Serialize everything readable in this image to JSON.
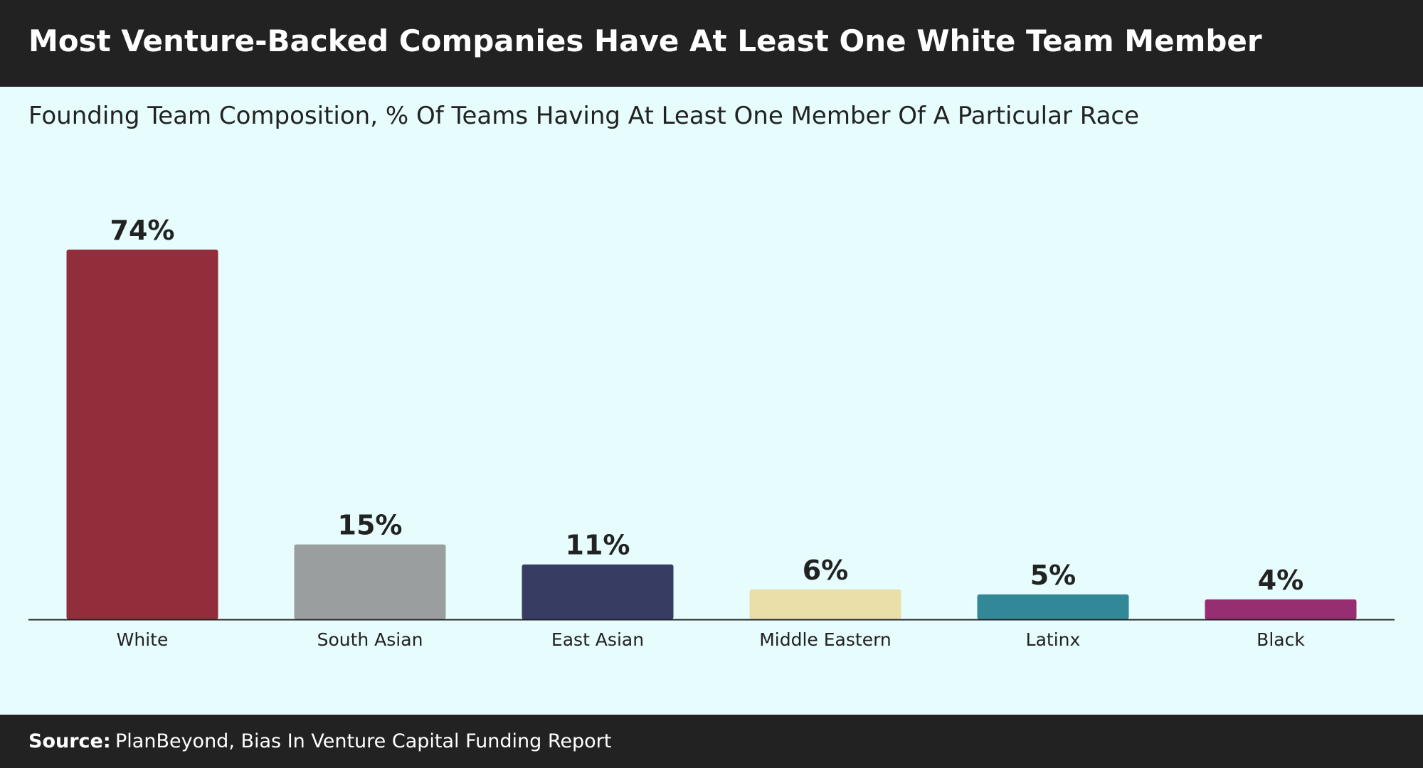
{
  "header": {
    "title": "Most Venture-Backed Companies Have At Least One White Team Member"
  },
  "chart_data": {
    "type": "bar",
    "title": "Most Venture-Backed Companies Have At Least One White Team Member",
    "subtitle": "Founding Team Composition, % Of Teams Having At Least One Member Of A Particular Race",
    "categories": [
      "White",
      "South Asian",
      "East Asian",
      "Middle Eastern",
      "Latinx",
      "Black"
    ],
    "values": [
      74,
      15,
      11,
      6,
      5,
      4
    ],
    "value_labels": [
      "74%",
      "15%",
      "11%",
      "6%",
      "5%",
      "4%"
    ],
    "colors": [
      "#922d3b",
      "#9a9e9f",
      "#363c62",
      "#eadfa9",
      "#338898",
      "#982e72"
    ],
    "xlabel": "",
    "ylabel": "",
    "ylim": [
      0,
      74
    ],
    "grid": false,
    "legend": "none"
  },
  "footer": {
    "source_label": "Source:",
    "source_text": "PlanBeyond, Bias In Venture Capital Funding Report"
  }
}
